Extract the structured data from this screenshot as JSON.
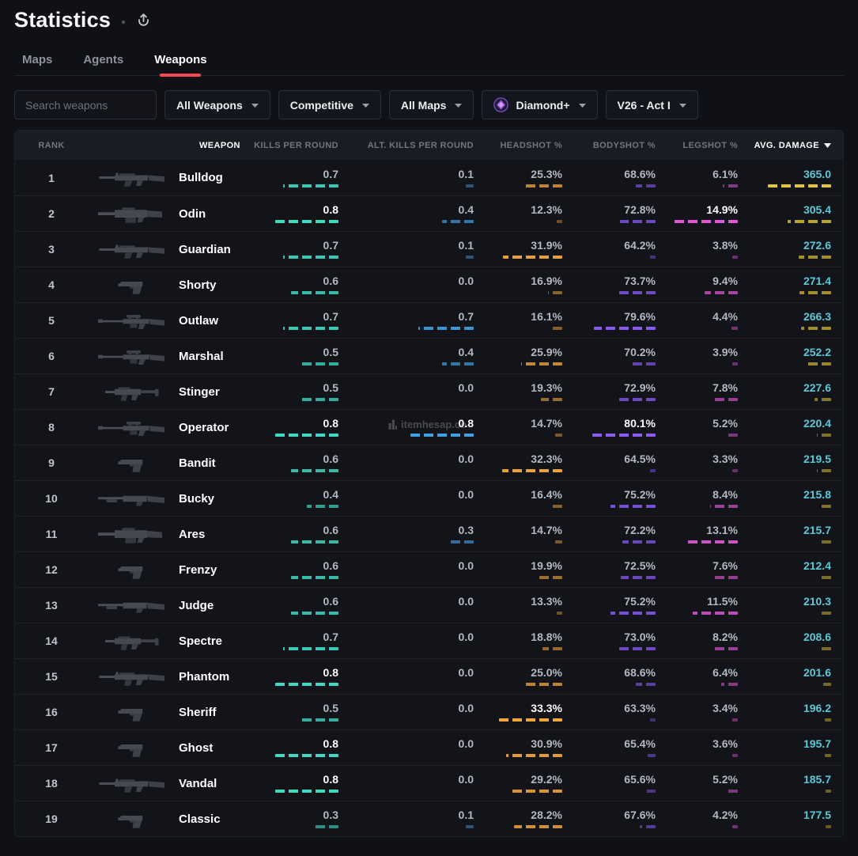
{
  "header": {
    "title": "Statistics"
  },
  "tabs": [
    {
      "label": "Maps",
      "active": false
    },
    {
      "label": "Agents",
      "active": false
    },
    {
      "label": "Weapons",
      "active": true
    }
  ],
  "filters": {
    "search_placeholder": "Search weapons",
    "dropdowns": [
      {
        "label": "All Weapons"
      },
      {
        "label": "Competitive"
      },
      {
        "label": "All Maps"
      },
      {
        "label": "Diamond+",
        "icon": "diamond-rank"
      },
      {
        "label": "V26 - Act I"
      }
    ]
  },
  "watermark": {
    "text": "itemhesap.co"
  },
  "colors": {
    "accent": "#ff4655",
    "kills_bar": "#3ed8c3",
    "alt_kills_bar": "#419fe3",
    "headshot_bar": "#f0a63a",
    "bodyshot_bar": "#8b5cf6",
    "legshot_bar": "#e358d8",
    "avg_damage_bar": "#e2c435",
    "avg_damage_text": "#5bc9d6"
  },
  "table": {
    "rank_header": "RANK",
    "weapon_header": "WEAPON",
    "columns": [
      {
        "key": "kills",
        "label": "KILLS PER ROUND",
        "fmt": "num",
        "color": "#3ed8c3",
        "scale": "zero"
      },
      {
        "key": "alt_kills",
        "label": "ALT. KILLS PER ROUND",
        "fmt": "num",
        "color": "#419fe3",
        "scale": "zero"
      },
      {
        "key": "headshot",
        "label": "HEADSHOT %",
        "fmt": "pct",
        "color": "#f0a63a",
        "scale": "minmax"
      },
      {
        "key": "bodyshot",
        "label": "BODYSHOT %",
        "fmt": "pct",
        "color": "#8b5cf6",
        "scale": "minmax"
      },
      {
        "key": "legshot",
        "label": "LEGSHOT %",
        "fmt": "pct",
        "color": "#e358d8",
        "scale": "minmax"
      },
      {
        "key": "avg_damage",
        "label": "AVG. DAMAGE",
        "fmt": "num",
        "color": "#e2c435",
        "scale": "minmax",
        "sorted": "desc",
        "value_color": "#5bc9d6"
      }
    ],
    "rows": [
      {
        "rank": 1,
        "name": "Bulldog",
        "icon": "rifle",
        "kills": 0.7,
        "alt_kills": 0.1,
        "headshot": 25.3,
        "bodyshot": 68.6,
        "legshot": 6.1,
        "avg_damage": 365.0
      },
      {
        "rank": 2,
        "name": "Odin",
        "icon": "mg",
        "kills": 0.8,
        "alt_kills": 0.4,
        "headshot": 12.3,
        "bodyshot": 72.8,
        "legshot": 14.9,
        "avg_damage": 305.4
      },
      {
        "rank": 3,
        "name": "Guardian",
        "icon": "rifle",
        "kills": 0.7,
        "alt_kills": 0.1,
        "headshot": 31.9,
        "bodyshot": 64.2,
        "legshot": 3.8,
        "avg_damage": 272.6
      },
      {
        "rank": 4,
        "name": "Shorty",
        "icon": "pistol",
        "kills": 0.6,
        "alt_kills": 0.0,
        "headshot": 16.9,
        "bodyshot": 73.7,
        "legshot": 9.4,
        "avg_damage": 271.4
      },
      {
        "rank": 5,
        "name": "Outlaw",
        "icon": "sniper",
        "kills": 0.7,
        "alt_kills": 0.7,
        "headshot": 16.1,
        "bodyshot": 79.6,
        "legshot": 4.4,
        "avg_damage": 266.3
      },
      {
        "rank": 6,
        "name": "Marshal",
        "icon": "sniper",
        "kills": 0.5,
        "alt_kills": 0.4,
        "headshot": 25.9,
        "bodyshot": 70.2,
        "legshot": 3.9,
        "avg_damage": 252.2
      },
      {
        "rank": 7,
        "name": "Stinger",
        "icon": "smg",
        "kills": 0.5,
        "alt_kills": 0.0,
        "headshot": 19.3,
        "bodyshot": 72.9,
        "legshot": 7.8,
        "avg_damage": 227.6
      },
      {
        "rank": 8,
        "name": "Operator",
        "icon": "sniper",
        "kills": 0.8,
        "alt_kills": 0.8,
        "headshot": 14.7,
        "bodyshot": 80.1,
        "legshot": 5.2,
        "avg_damage": 220.4
      },
      {
        "rank": 9,
        "name": "Bandit",
        "icon": "pistol",
        "kills": 0.6,
        "alt_kills": 0.0,
        "headshot": 32.3,
        "bodyshot": 64.5,
        "legshot": 3.3,
        "avg_damage": 219.5
      },
      {
        "rank": 10,
        "name": "Bucky",
        "icon": "shotgun",
        "kills": 0.4,
        "alt_kills": 0.0,
        "headshot": 16.4,
        "bodyshot": 75.2,
        "legshot": 8.4,
        "avg_damage": 215.8
      },
      {
        "rank": 11,
        "name": "Ares",
        "icon": "mg",
        "kills": 0.6,
        "alt_kills": 0.3,
        "headshot": 14.7,
        "bodyshot": 72.2,
        "legshot": 13.1,
        "avg_damage": 215.7
      },
      {
        "rank": 12,
        "name": "Frenzy",
        "icon": "pistol",
        "kills": 0.6,
        "alt_kills": 0.0,
        "headshot": 19.9,
        "bodyshot": 72.5,
        "legshot": 7.6,
        "avg_damage": 212.4
      },
      {
        "rank": 13,
        "name": "Judge",
        "icon": "shotgun",
        "kills": 0.6,
        "alt_kills": 0.0,
        "headshot": 13.3,
        "bodyshot": 75.2,
        "legshot": 11.5,
        "avg_damage": 210.3
      },
      {
        "rank": 14,
        "name": "Spectre",
        "icon": "smg",
        "kills": 0.7,
        "alt_kills": 0.0,
        "headshot": 18.8,
        "bodyshot": 73.0,
        "legshot": 8.2,
        "avg_damage": 208.6
      },
      {
        "rank": 15,
        "name": "Phantom",
        "icon": "rifle",
        "kills": 0.8,
        "alt_kills": 0.0,
        "headshot": 25.0,
        "bodyshot": 68.6,
        "legshot": 6.4,
        "avg_damage": 201.6
      },
      {
        "rank": 16,
        "name": "Sheriff",
        "icon": "pistol",
        "kills": 0.5,
        "alt_kills": 0.0,
        "headshot": 33.3,
        "bodyshot": 63.3,
        "legshot": 3.4,
        "avg_damage": 196.2
      },
      {
        "rank": 17,
        "name": "Ghost",
        "icon": "pistol",
        "kills": 0.8,
        "alt_kills": 0.0,
        "headshot": 30.9,
        "bodyshot": 65.4,
        "legshot": 3.6,
        "avg_damage": 195.7
      },
      {
        "rank": 18,
        "name": "Vandal",
        "icon": "rifle",
        "kills": 0.8,
        "alt_kills": 0.0,
        "headshot": 29.2,
        "bodyshot": 65.6,
        "legshot": 5.2,
        "avg_damage": 185.7
      },
      {
        "rank": 19,
        "name": "Classic",
        "icon": "pistol",
        "kills": 0.3,
        "alt_kills": 0.1,
        "headshot": 28.2,
        "bodyshot": 67.6,
        "legshot": 4.2,
        "avg_damage": 177.5
      }
    ]
  }
}
